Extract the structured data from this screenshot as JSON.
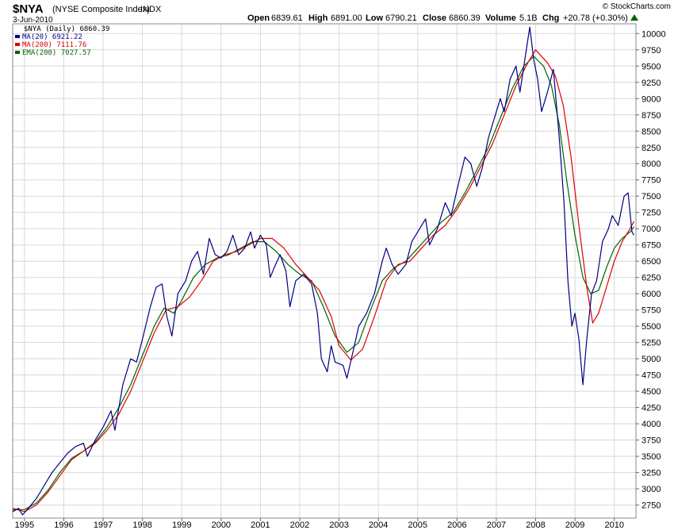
{
  "header": {
    "symbol": "$NYA",
    "name": "(NYSE Composite Index)",
    "exchange": "INDX",
    "date": "3-Jun-2010",
    "open_label": "Open",
    "open": "6839.61",
    "high_label": "High",
    "high": "6891.00",
    "low_label": "Low",
    "low": "6790.21",
    "close_label": "Close",
    "close": "6860.39",
    "volume_label": "Volume",
    "volume": "5.1B",
    "chg_label": "Chg",
    "chg": "+20.78 (+0.30%)",
    "brand": "© StockCharts.com"
  },
  "legend": [
    {
      "label": "$NYA (Daily) 6860.39",
      "color": "#000000"
    },
    {
      "label": "MA(20) 6921.22",
      "color": "#00008b"
    },
    {
      "label": "MA(200) 7111.76",
      "color": "#dd0000"
    },
    {
      "label": "EMA(200) 7027.57",
      "color": "#006400"
    }
  ],
  "colors": {
    "price": "#000080",
    "ma200": "#dd0000",
    "ema200": "#006400",
    "grid": "#d8d8d8",
    "border": "#888888"
  },
  "chart_data": {
    "type": "line",
    "xlim": [
      1994.7,
      2010.55
    ],
    "ylim": [
      2550,
      10150
    ],
    "yticks": [
      2750,
      3000,
      3250,
      3500,
      3750,
      4000,
      4250,
      4500,
      4750,
      5000,
      5250,
      5500,
      5750,
      6000,
      6250,
      6500,
      6750,
      7000,
      7250,
      7500,
      7750,
      8000,
      8250,
      8500,
      8750,
      9000,
      9250,
      9500,
      9750,
      10000
    ],
    "xticks": [
      {
        "label": "1995",
        "x": 1995.0
      },
      {
        "label": "1996",
        "x": 1996.0
      },
      {
        "label": "1997",
        "x": 1997.0
      },
      {
        "label": "1998",
        "x": 1998.0
      },
      {
        "label": "1999",
        "x": 1999.0
      },
      {
        "label": "2000",
        "x": 2000.0
      },
      {
        "label": "2001",
        "x": 2001.0
      },
      {
        "label": "2002",
        "x": 2002.0
      },
      {
        "label": "2003",
        "x": 2003.0
      },
      {
        "label": "2004",
        "x": 2004.0
      },
      {
        "label": "2005",
        "x": 2005.0
      },
      {
        "label": "2006",
        "x": 2006.0
      },
      {
        "label": "2007",
        "x": 2007.0
      },
      {
        "label": "2008",
        "x": 2008.0
      },
      {
        "label": "2009",
        "x": 2009.0
      },
      {
        "label": "2010",
        "x": 2010.0
      }
    ],
    "grid": true,
    "series": [
      {
        "name": "MA(20)",
        "color": "#000080",
        "points": [
          [
            1994.7,
            2650
          ],
          [
            1994.85,
            2700
          ],
          [
            1994.95,
            2600
          ],
          [
            1995.1,
            2700
          ],
          [
            1995.3,
            2850
          ],
          [
            1995.5,
            3050
          ],
          [
            1995.7,
            3250
          ],
          [
            1995.9,
            3400
          ],
          [
            1996.1,
            3550
          ],
          [
            1996.3,
            3650
          ],
          [
            1996.5,
            3700
          ],
          [
            1996.6,
            3500
          ],
          [
            1996.8,
            3750
          ],
          [
            1997.0,
            3950
          ],
          [
            1997.2,
            4200
          ],
          [
            1997.3,
            3900
          ],
          [
            1997.5,
            4600
          ],
          [
            1997.7,
            5000
          ],
          [
            1997.85,
            4950
          ],
          [
            1998.0,
            5300
          ],
          [
            1998.2,
            5800
          ],
          [
            1998.35,
            6100
          ],
          [
            1998.5,
            6150
          ],
          [
            1998.62,
            5650
          ],
          [
            1998.75,
            5350
          ],
          [
            1998.9,
            6000
          ],
          [
            1999.1,
            6200
          ],
          [
            1999.25,
            6500
          ],
          [
            1999.4,
            6650
          ],
          [
            1999.55,
            6300
          ],
          [
            1999.7,
            6850
          ],
          [
            1999.85,
            6600
          ],
          [
            2000.0,
            6550
          ],
          [
            2000.15,
            6650
          ],
          [
            2000.3,
            6900
          ],
          [
            2000.45,
            6600
          ],
          [
            2000.6,
            6700
          ],
          [
            2000.75,
            6950
          ],
          [
            2000.85,
            6700
          ],
          [
            2001.0,
            6900
          ],
          [
            2001.15,
            6750
          ],
          [
            2001.25,
            6250
          ],
          [
            2001.35,
            6400
          ],
          [
            2001.5,
            6600
          ],
          [
            2001.65,
            6350
          ],
          [
            2001.75,
            5800
          ],
          [
            2001.9,
            6200
          ],
          [
            2002.1,
            6300
          ],
          [
            2002.3,
            6150
          ],
          [
            2002.45,
            5700
          ],
          [
            2002.55,
            5000
          ],
          [
            2002.7,
            4800
          ],
          [
            2002.8,
            5200
          ],
          [
            2002.9,
            4950
          ],
          [
            2003.1,
            4900
          ],
          [
            2003.2,
            4700
          ],
          [
            2003.35,
            5100
          ],
          [
            2003.5,
            5500
          ],
          [
            2003.7,
            5700
          ],
          [
            2003.9,
            6000
          ],
          [
            2004.1,
            6500
          ],
          [
            2004.2,
            6700
          ],
          [
            2004.35,
            6450
          ],
          [
            2004.5,
            6300
          ],
          [
            2004.7,
            6450
          ],
          [
            2004.85,
            6800
          ],
          [
            2005.0,
            6950
          ],
          [
            2005.2,
            7150
          ],
          [
            2005.3,
            6750
          ],
          [
            2005.5,
            7000
          ],
          [
            2005.7,
            7400
          ],
          [
            2005.85,
            7200
          ],
          [
            2006.0,
            7600
          ],
          [
            2006.2,
            8100
          ],
          [
            2006.35,
            8000
          ],
          [
            2006.5,
            7650
          ],
          [
            2006.65,
            7950
          ],
          [
            2006.8,
            8400
          ],
          [
            2006.95,
            8700
          ],
          [
            2007.1,
            9000
          ],
          [
            2007.2,
            8800
          ],
          [
            2007.35,
            9300
          ],
          [
            2007.5,
            9500
          ],
          [
            2007.6,
            9100
          ],
          [
            2007.75,
            9700
          ],
          [
            2007.85,
            10100
          ],
          [
            2007.95,
            9600
          ],
          [
            2008.05,
            9300
          ],
          [
            2008.15,
            8800
          ],
          [
            2008.3,
            9100
          ],
          [
            2008.45,
            9450
          ],
          [
            2008.6,
            8400
          ],
          [
            2008.72,
            7400
          ],
          [
            2008.82,
            6200
          ],
          [
            2008.92,
            5500
          ],
          [
            2009.0,
            5700
          ],
          [
            2009.1,
            5300
          ],
          [
            2009.2,
            4600
          ],
          [
            2009.3,
            5300
          ],
          [
            2009.42,
            6000
          ],
          [
            2009.55,
            6200
          ],
          [
            2009.7,
            6800
          ],
          [
            2009.85,
            7000
          ],
          [
            2009.95,
            7200
          ],
          [
            2010.1,
            7050
          ],
          [
            2010.25,
            7500
          ],
          [
            2010.35,
            7550
          ],
          [
            2010.45,
            6950
          ],
          [
            2010.5,
            6900
          ]
        ]
      },
      {
        "name": "MA(200)",
        "color": "#dd0000",
        "points": [
          [
            1994.7,
            2700
          ],
          [
            1995.0,
            2650
          ],
          [
            1995.3,
            2750
          ],
          [
            1995.6,
            2950
          ],
          [
            1995.9,
            3200
          ],
          [
            1996.2,
            3450
          ],
          [
            1996.5,
            3580
          ],
          [
            1996.8,
            3700
          ],
          [
            1997.1,
            3900
          ],
          [
            1997.4,
            4150
          ],
          [
            1997.7,
            4500
          ],
          [
            1998.0,
            4950
          ],
          [
            1998.3,
            5400
          ],
          [
            1998.6,
            5750
          ],
          [
            1998.9,
            5800
          ],
          [
            1999.2,
            5950
          ],
          [
            1999.5,
            6200
          ],
          [
            1999.8,
            6500
          ],
          [
            2000.1,
            6600
          ],
          [
            2000.4,
            6650
          ],
          [
            2000.7,
            6750
          ],
          [
            2001.0,
            6850
          ],
          [
            2001.3,
            6850
          ],
          [
            2001.6,
            6700
          ],
          [
            2001.9,
            6450
          ],
          [
            2002.2,
            6250
          ],
          [
            2002.5,
            6050
          ],
          [
            2002.8,
            5650
          ],
          [
            2003.0,
            5200
          ],
          [
            2003.3,
            4980
          ],
          [
            2003.6,
            5150
          ],
          [
            2003.9,
            5650
          ],
          [
            2004.2,
            6200
          ],
          [
            2004.5,
            6450
          ],
          [
            2004.8,
            6500
          ],
          [
            2005.1,
            6700
          ],
          [
            2005.4,
            6900
          ],
          [
            2005.7,
            7050
          ],
          [
            2006.0,
            7300
          ],
          [
            2006.3,
            7600
          ],
          [
            2006.6,
            7950
          ],
          [
            2006.9,
            8300
          ],
          [
            2007.2,
            8750
          ],
          [
            2007.5,
            9200
          ],
          [
            2007.8,
            9550
          ],
          [
            2008.0,
            9750
          ],
          [
            2008.3,
            9550
          ],
          [
            2008.5,
            9350
          ],
          [
            2008.7,
            8900
          ],
          [
            2008.9,
            8100
          ],
          [
            2009.1,
            7050
          ],
          [
            2009.3,
            6100
          ],
          [
            2009.45,
            5550
          ],
          [
            2009.6,
            5700
          ],
          [
            2009.8,
            6100
          ],
          [
            2010.0,
            6500
          ],
          [
            2010.2,
            6800
          ],
          [
            2010.4,
            7000
          ],
          [
            2010.5,
            7110
          ]
        ]
      },
      {
        "name": "EMA(200)",
        "color": "#006400",
        "points": [
          [
            1994.7,
            2680
          ],
          [
            1995.0,
            2680
          ],
          [
            1995.3,
            2780
          ],
          [
            1995.6,
            2980
          ],
          [
            1995.9,
            3250
          ],
          [
            1996.2,
            3470
          ],
          [
            1996.5,
            3580
          ],
          [
            1996.8,
            3720
          ],
          [
            1997.1,
            3950
          ],
          [
            1997.4,
            4250
          ],
          [
            1997.7,
            4600
          ],
          [
            1998.0,
            5050
          ],
          [
            1998.3,
            5500
          ],
          [
            1998.55,
            5780
          ],
          [
            1998.8,
            5700
          ],
          [
            1999.0,
            5900
          ],
          [
            1999.3,
            6250
          ],
          [
            1999.6,
            6450
          ],
          [
            1999.9,
            6550
          ],
          [
            2000.2,
            6600
          ],
          [
            2000.5,
            6700
          ],
          [
            2000.8,
            6800
          ],
          [
            2001.1,
            6800
          ],
          [
            2001.4,
            6650
          ],
          [
            2001.7,
            6450
          ],
          [
            2002.0,
            6300
          ],
          [
            2002.3,
            6200
          ],
          [
            2002.6,
            5800
          ],
          [
            2002.9,
            5350
          ],
          [
            2003.2,
            5100
          ],
          [
            2003.5,
            5250
          ],
          [
            2003.8,
            5750
          ],
          [
            2004.1,
            6200
          ],
          [
            2004.4,
            6400
          ],
          [
            2004.7,
            6500
          ],
          [
            2005.0,
            6700
          ],
          [
            2005.3,
            6900
          ],
          [
            2005.6,
            7100
          ],
          [
            2005.9,
            7250
          ],
          [
            2006.2,
            7550
          ],
          [
            2006.5,
            7900
          ],
          [
            2006.8,
            8250
          ],
          [
            2007.1,
            8700
          ],
          [
            2007.4,
            9150
          ],
          [
            2007.7,
            9500
          ],
          [
            2007.95,
            9650
          ],
          [
            2008.2,
            9500
          ],
          [
            2008.4,
            9200
          ],
          [
            2008.6,
            8600
          ],
          [
            2008.8,
            7700
          ],
          [
            2009.0,
            6900
          ],
          [
            2009.2,
            6250
          ],
          [
            2009.4,
            6000
          ],
          [
            2009.6,
            6050
          ],
          [
            2009.8,
            6400
          ],
          [
            2010.0,
            6700
          ],
          [
            2010.2,
            6850
          ],
          [
            2010.4,
            6950
          ],
          [
            2010.5,
            7030
          ]
        ]
      }
    ]
  }
}
